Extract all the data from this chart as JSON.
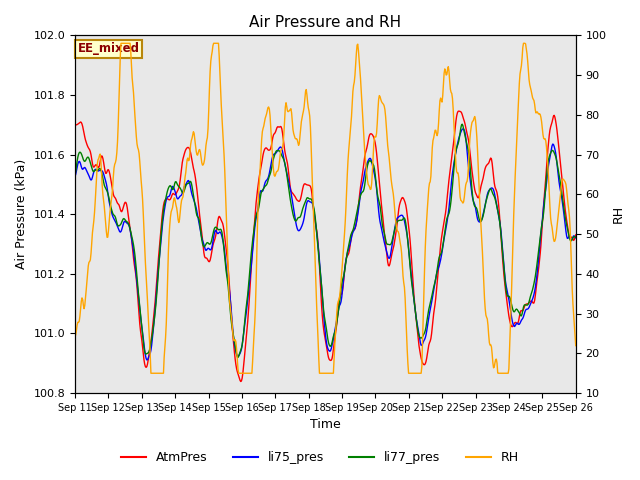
{
  "title": "Air Pressure and RH",
  "xlabel": "Time",
  "ylabel_left": "Air Pressure (kPa)",
  "ylabel_right": "RH",
  "ylim_left": [
    100.8,
    102.0
  ],
  "ylim_right": [
    10,
    100
  ],
  "yticks_left": [
    100.8,
    101.0,
    101.2,
    101.4,
    101.6,
    101.8,
    102.0
  ],
  "yticks_right": [
    10,
    20,
    30,
    40,
    50,
    60,
    70,
    80,
    90,
    100
  ],
  "xtick_labels": [
    "Sep 11",
    "Sep 12",
    "Sep 13",
    "Sep 14",
    "Sep 15",
    "Sep 16",
    "Sep 17",
    "Sep 18",
    "Sep 19",
    "Sep 20",
    "Sep 21",
    "Sep 22",
    "Sep 23",
    "Sep 24",
    "Sep 25",
    "Sep 26"
  ],
  "annotation_text": "EE_mixed",
  "legend_labels": [
    "AtmPres",
    "li75_pres",
    "li77_pres",
    "RH"
  ],
  "line_colors": [
    "red",
    "blue",
    "green",
    "orange"
  ],
  "background_color": "#e8e8e8",
  "title_fontsize": 11,
  "seed": 7
}
